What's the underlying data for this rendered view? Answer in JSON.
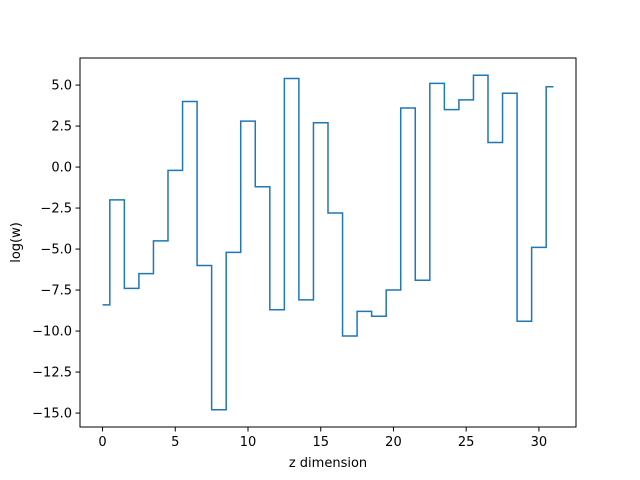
{
  "chart_data": {
    "type": "line",
    "step": "mid",
    "xlabel": "z dimension",
    "ylabel": "log(w)",
    "xlim": [
      -1.55,
      32.55
    ],
    "ylim": [
      -15.85,
      6.65
    ],
    "x_ticks": [
      0,
      5,
      10,
      15,
      20,
      25,
      30
    ],
    "y_ticks": [
      -15.0,
      -12.5,
      -10.0,
      -7.5,
      -5.0,
      -2.5,
      0.0,
      2.5,
      5.0
    ],
    "x_tick_labels": [
      "0",
      "5",
      "10",
      "15",
      "20",
      "25",
      "30"
    ],
    "y_tick_labels": [
      "−15.0",
      "−12.5",
      "−10.0",
      "−7.5",
      "−5.0",
      "−2.5",
      "0.0",
      "2.5",
      "5.0"
    ],
    "grid": false,
    "legend": "none",
    "line_color": "#1f77b4",
    "series": [
      {
        "x": [
          0,
          1,
          2,
          3,
          4,
          5,
          6,
          7,
          8,
          9,
          10,
          11,
          12,
          13,
          14,
          15,
          16,
          17,
          18,
          19,
          20,
          21,
          22,
          23,
          24,
          25,
          26,
          27,
          28,
          29,
          30,
          31
        ],
        "values": [
          -8.4,
          -2.0,
          -7.4,
          -6.5,
          -4.5,
          -0.2,
          4.0,
          -6.0,
          -14.8,
          -5.2,
          2.8,
          -1.2,
          -8.7,
          5.4,
          -8.1,
          2.7,
          -2.8,
          -10.3,
          -8.8,
          -9.1,
          -7.5,
          3.6,
          -6.9,
          5.1,
          3.5,
          4.1,
          5.6,
          1.5,
          4.5,
          -9.4,
          -4.9,
          4.9
        ]
      }
    ]
  }
}
